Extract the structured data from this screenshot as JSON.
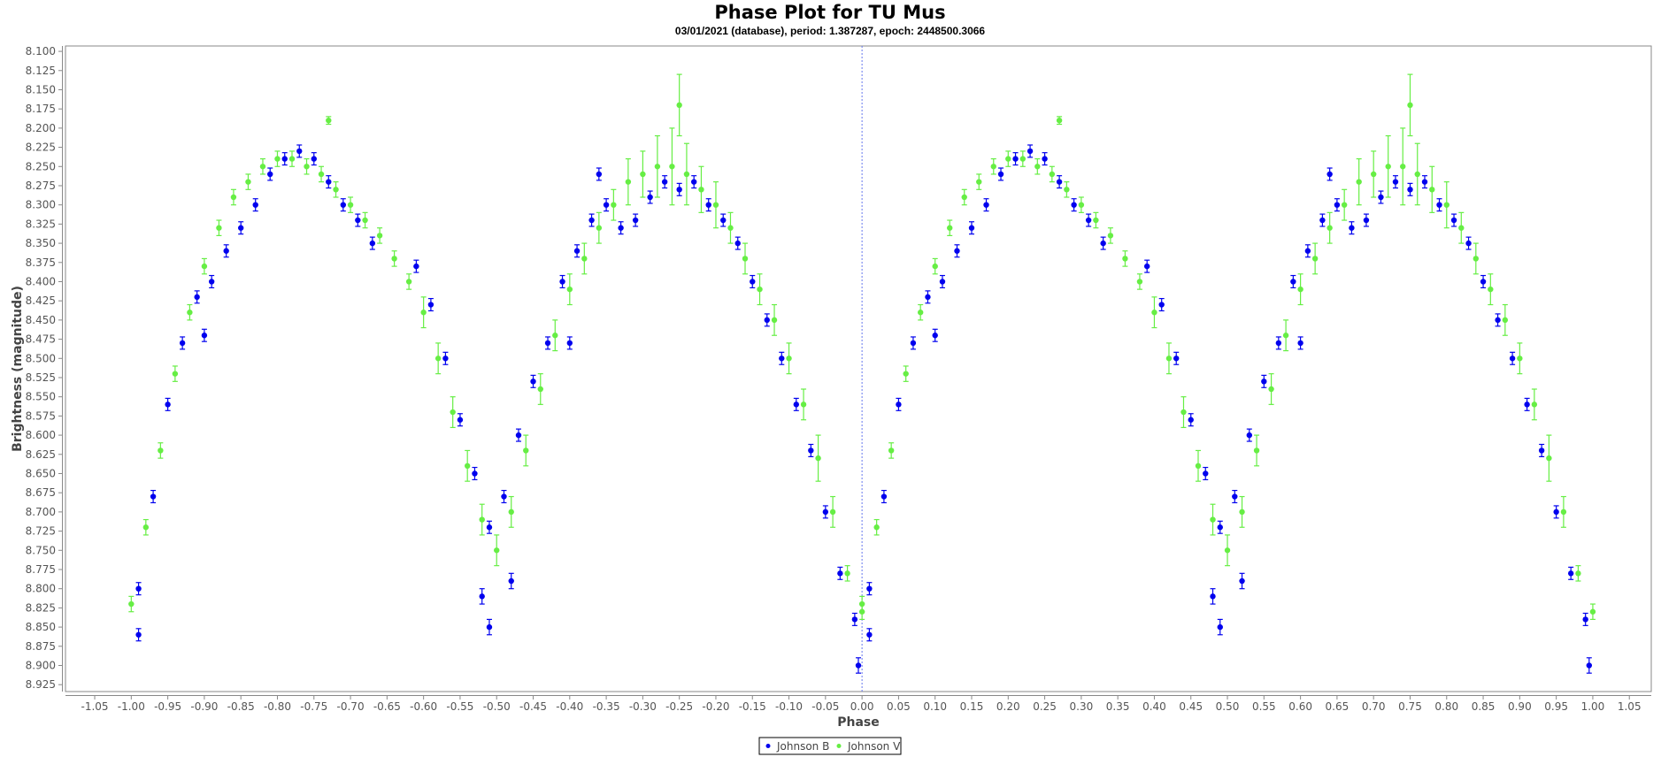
{
  "chart_data": {
    "type": "scatter",
    "title": "Phase Plot for TU Mus",
    "subtitle": "03/01/2021 (database), period: 1.387287, epoch: 2448500.3066",
    "xlabel": "Phase",
    "ylabel": "Brightness (magnitude)",
    "xlim": [
      -1.09,
      1.08
    ],
    "ylim": [
      8.093,
      8.934
    ],
    "y_inverted": true,
    "x_ticks": [
      "-1.05",
      "-1.00",
      "-0.95",
      "-0.90",
      "-0.85",
      "-0.80",
      "-0.75",
      "-0.70",
      "-0.65",
      "-0.60",
      "-0.55",
      "-0.50",
      "-0.45",
      "-0.40",
      "-0.35",
      "-0.30",
      "-0.25",
      "-0.20",
      "-0.15",
      "-0.10",
      "-0.05",
      "0.00",
      "0.05",
      "0.10",
      "0.15",
      "0.20",
      "0.25",
      "0.30",
      "0.35",
      "0.40",
      "0.45",
      "0.50",
      "0.55",
      "0.60",
      "0.65",
      "0.70",
      "0.75",
      "0.80",
      "0.85",
      "0.90",
      "0.95",
      "1.00",
      "1.05"
    ],
    "y_ticks": [
      "8.100",
      "8.125",
      "8.150",
      "8.175",
      "8.200",
      "8.225",
      "8.250",
      "8.275",
      "8.300",
      "8.325",
      "8.350",
      "8.375",
      "8.400",
      "8.425",
      "8.450",
      "8.475",
      "8.500",
      "8.525",
      "8.550",
      "8.575",
      "8.600",
      "8.625",
      "8.650",
      "8.675",
      "8.700",
      "8.725",
      "8.750",
      "8.775",
      "8.800",
      "8.825",
      "8.850",
      "8.875",
      "8.900",
      "8.925"
    ],
    "phase_repeated_at_plus_one": true,
    "reference_line_x": 0,
    "grid": false,
    "legend_position": "bottom-center",
    "series": [
      {
        "name": "Johnson B",
        "color": "#0000ee",
        "points": [
          [
            -0.99,
            8.8,
            0.008
          ],
          [
            -0.99,
            8.86,
            0.008
          ],
          [
            -0.97,
            8.68,
            0.008
          ],
          [
            -0.95,
            8.56,
            0.008
          ],
          [
            -0.93,
            8.48,
            0.008
          ],
          [
            -0.91,
            8.42,
            0.008
          ],
          [
            -0.9,
            8.47,
            0.008
          ],
          [
            -0.89,
            8.4,
            0.008
          ],
          [
            -0.87,
            8.36,
            0.008
          ],
          [
            -0.85,
            8.33,
            0.008
          ],
          [
            -0.83,
            8.3,
            0.008
          ],
          [
            -0.81,
            8.26,
            0.008
          ],
          [
            -0.79,
            8.24,
            0.008
          ],
          [
            -0.77,
            8.23,
            0.008
          ],
          [
            -0.75,
            8.24,
            0.008
          ],
          [
            -0.73,
            8.27,
            0.008
          ],
          [
            -0.71,
            8.3,
            0.008
          ],
          [
            -0.69,
            8.32,
            0.008
          ],
          [
            -0.67,
            8.35,
            0.008
          ],
          [
            -0.61,
            8.38,
            0.008
          ],
          [
            -0.59,
            8.43,
            0.008
          ],
          [
            -0.57,
            8.5,
            0.008
          ],
          [
            -0.55,
            8.58,
            0.008
          ],
          [
            -0.53,
            8.65,
            0.008
          ],
          [
            -0.52,
            8.81,
            0.01
          ],
          [
            -0.51,
            8.72,
            0.008
          ],
          [
            -0.51,
            8.85,
            0.01
          ],
          [
            -0.49,
            8.68,
            0.008
          ],
          [
            -0.48,
            8.79,
            0.01
          ],
          [
            -0.47,
            8.6,
            0.008
          ],
          [
            -0.45,
            8.53,
            0.008
          ],
          [
            -0.43,
            8.48,
            0.008
          ],
          [
            -0.41,
            8.4,
            0.008
          ],
          [
            -0.4,
            8.48,
            0.008
          ],
          [
            -0.39,
            8.36,
            0.008
          ],
          [
            -0.37,
            8.32,
            0.008
          ],
          [
            -0.36,
            8.26,
            0.008
          ],
          [
            -0.35,
            8.3,
            0.008
          ],
          [
            -0.33,
            8.33,
            0.008
          ],
          [
            -0.31,
            8.32,
            0.008
          ],
          [
            -0.29,
            8.29,
            0.008
          ],
          [
            -0.27,
            8.27,
            0.008
          ],
          [
            -0.25,
            8.28,
            0.008
          ],
          [
            -0.23,
            8.27,
            0.008
          ],
          [
            -0.21,
            8.3,
            0.008
          ],
          [
            -0.19,
            8.32,
            0.008
          ],
          [
            -0.17,
            8.35,
            0.008
          ],
          [
            -0.15,
            8.4,
            0.008
          ],
          [
            -0.13,
            8.45,
            0.008
          ],
          [
            -0.11,
            8.5,
            0.008
          ],
          [
            -0.09,
            8.56,
            0.008
          ],
          [
            -0.07,
            8.62,
            0.008
          ],
          [
            -0.05,
            8.7,
            0.008
          ],
          [
            -0.03,
            8.78,
            0.008
          ],
          [
            -0.01,
            8.84,
            0.008
          ],
          [
            -0.005,
            8.9,
            0.01
          ]
        ]
      },
      {
        "name": "Johnson V",
        "color": "#66ee44",
        "points": [
          [
            -1.0,
            8.82,
            0.01
          ],
          [
            -0.98,
            8.72,
            0.01
          ],
          [
            -0.96,
            8.62,
            0.01
          ],
          [
            -0.94,
            8.52,
            0.01
          ],
          [
            -0.92,
            8.44,
            0.01
          ],
          [
            -0.9,
            8.38,
            0.01
          ],
          [
            -0.88,
            8.33,
            0.01
          ],
          [
            -0.86,
            8.29,
            0.01
          ],
          [
            -0.84,
            8.27,
            0.01
          ],
          [
            -0.82,
            8.25,
            0.01
          ],
          [
            -0.8,
            8.24,
            0.01
          ],
          [
            -0.78,
            8.24,
            0.01
          ],
          [
            -0.76,
            8.25,
            0.01
          ],
          [
            -0.74,
            8.26,
            0.01
          ],
          [
            -0.73,
            8.19,
            0.005
          ],
          [
            -0.72,
            8.28,
            0.01
          ],
          [
            -0.7,
            8.3,
            0.01
          ],
          [
            -0.68,
            8.32,
            0.01
          ],
          [
            -0.66,
            8.34,
            0.01
          ],
          [
            -0.64,
            8.37,
            0.01
          ],
          [
            -0.62,
            8.4,
            0.01
          ],
          [
            -0.6,
            8.44,
            0.02
          ],
          [
            -0.58,
            8.5,
            0.02
          ],
          [
            -0.56,
            8.57,
            0.02
          ],
          [
            -0.54,
            8.64,
            0.02
          ],
          [
            -0.52,
            8.71,
            0.02
          ],
          [
            -0.5,
            8.75,
            0.02
          ],
          [
            -0.48,
            8.7,
            0.02
          ],
          [
            -0.46,
            8.62,
            0.02
          ],
          [
            -0.44,
            8.54,
            0.02
          ],
          [
            -0.42,
            8.47,
            0.02
          ],
          [
            -0.4,
            8.41,
            0.02
          ],
          [
            -0.38,
            8.37,
            0.02
          ],
          [
            -0.36,
            8.33,
            0.02
          ],
          [
            -0.34,
            8.3,
            0.02
          ],
          [
            -0.32,
            8.27,
            0.03
          ],
          [
            -0.3,
            8.26,
            0.03
          ],
          [
            -0.28,
            8.25,
            0.04
          ],
          [
            -0.26,
            8.25,
            0.05
          ],
          [
            -0.25,
            8.17,
            0.04
          ],
          [
            -0.24,
            8.26,
            0.04
          ],
          [
            -0.22,
            8.28,
            0.03
          ],
          [
            -0.2,
            8.3,
            0.03
          ],
          [
            -0.18,
            8.33,
            0.02
          ],
          [
            -0.16,
            8.37,
            0.02
          ],
          [
            -0.14,
            8.41,
            0.02
          ],
          [
            -0.12,
            8.45,
            0.02
          ],
          [
            -0.1,
            8.5,
            0.02
          ],
          [
            -0.08,
            8.56,
            0.02
          ],
          [
            -0.06,
            8.63,
            0.03
          ],
          [
            -0.04,
            8.7,
            0.02
          ],
          [
            -0.02,
            8.78,
            0.01
          ],
          [
            0.0,
            8.83,
            0.01
          ]
        ]
      }
    ]
  }
}
